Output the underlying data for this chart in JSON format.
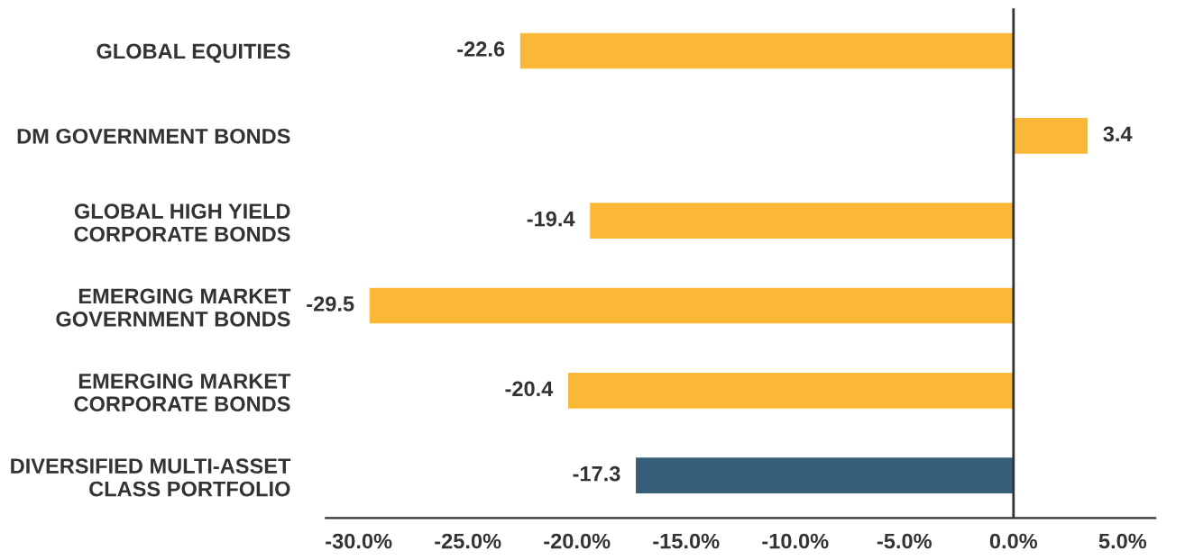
{
  "chart_data": {
    "type": "bar",
    "orientation": "horizontal",
    "categories": [
      "GLOBAL EQUITIES",
      "DM GOVERNMENT BONDS",
      "GLOBAL HIGH YIELD\nCORPORATE BONDS",
      "EMERGING MARKET\nGOVERNMENT BONDS",
      "EMERGING MARKET\nCORPORATE BONDS",
      "DIVERSIFIED MULTI-ASSET\nCLASS PORTFOLIO"
    ],
    "values": [
      -22.6,
      3.4,
      -19.4,
      -29.5,
      -20.4,
      -17.3
    ],
    "colors": [
      "#fbb736",
      "#fbb736",
      "#fbb736",
      "#fbb736",
      "#fbb736",
      "#365e78"
    ],
    "data_labels": true,
    "xlim": [
      -31.5,
      6.5
    ],
    "xticks": [
      {
        "value": -30,
        "label": "-30.0%"
      },
      {
        "value": -25,
        "label": "-25.0%"
      },
      {
        "value": -20,
        "label": "-20.0%"
      },
      {
        "value": -15,
        "label": "-15.0%"
      },
      {
        "value": -10,
        "label": "-10.0%"
      },
      {
        "value": -5,
        "label": "-5.0%"
      },
      {
        "value": 0,
        "label": "0.0%"
      },
      {
        "value": 5,
        "label": "5.0%"
      }
    ],
    "ref_lines": [
      {
        "axis": "x",
        "value": 0,
        "color": "#333333"
      }
    ],
    "grid": false
  }
}
